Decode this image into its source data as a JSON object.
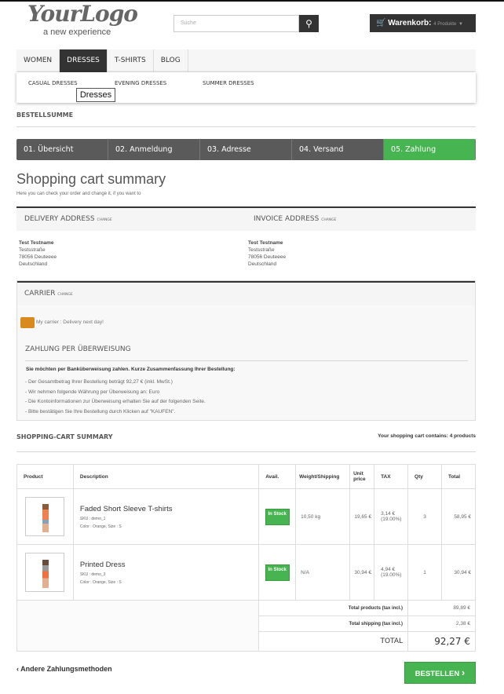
{
  "header": {
    "logo_text": "YourLogo",
    "logo_tagline": "a new experience",
    "search_placeholder": "Suche",
    "cart_label": "Warenkorb:",
    "cart_count": "4 Produkte"
  },
  "nav": {
    "items": [
      {
        "label": "WOMEN"
      },
      {
        "label": "DRESSES"
      },
      {
        "label": "T-SHIRTS"
      },
      {
        "label": "BLOG"
      }
    ],
    "submenu": [
      "CASUAL DRESSES",
      "EVENING DRESSES",
      "SUMMER DRESSES"
    ],
    "tooltip": "Dresses"
  },
  "page": {
    "section_label": "BESTELLSUMME",
    "title": "Shopping cart summary",
    "subtitle": "Here you can check your order and change it, if you want to"
  },
  "steps": [
    "01. Übersicht",
    "02. Anmeldung",
    "03. Adresse",
    "04. Versand",
    "05. Zahlung"
  ],
  "delivery": {
    "title": "DELIVERY ADDRESS",
    "change": "CHANGE",
    "lines": [
      "Test Testname",
      "Testsstraße",
      "78056 Deuteeee",
      "Deutschland"
    ]
  },
  "invoice": {
    "title": "INVOICE ADDRESS",
    "change": "CHANGE",
    "lines": [
      "Test Testname",
      "Testsstraße",
      "78056 Deuteeee",
      "Deutschland"
    ]
  },
  "carrier": {
    "title": "CARRIER",
    "change": "CHANGE",
    "text": "My carrier : Delivery next day!"
  },
  "payment": {
    "title": "ZAHLUNG PER ÜBERWEISUNG",
    "intro": "Sie möchten per Banküberweisung zahlen. Kurze Zusammenfassung Ihrer Bestellung:",
    "lines": [
      "- Der Gesamtbetrag Ihrer Bestellung beträgt 92,27 € (inkl. MwSt.)",
      "- Wir nehmen folgende Währung per Überweisung an: Euro",
      "- Die Kontoinformationen zur Überweisung erhalten Sie auf der folgenden Seite.",
      "- Bitte bestätigen Sie Ihre Bestellung durch Klicken auf \"KAUFEN\"."
    ]
  },
  "cart": {
    "title": "SHOPPING-CART SUMMARY",
    "count_text": "Your shopping cart contains: 4 products",
    "headers": [
      "Product",
      "Description",
      "Avail.",
      "Weight/Shipping",
      "Unit price",
      "TAX",
      "Qty",
      "Total"
    ],
    "rows": [
      {
        "name": "Faded Short Sleeve T-shirts",
        "sku": "SKU : demo_1",
        "attrs": "Color : Orange, Size : S",
        "avail": "In Stock",
        "weight": "10,50 kg",
        "unit": "19,65 €",
        "tax": "3,14 €",
        "tax_rate": "(19.00%)",
        "qty": "3",
        "total": "58,95 €"
      },
      {
        "name": "Printed Dress",
        "sku": "SKU : demo_3",
        "attrs": "Color : Orange, Size : S",
        "avail": "In Stock",
        "weight": "N/A",
        "unit": "30,94 €",
        "tax": "4,94 €",
        "tax_rate": "(19.00%)",
        "qty": "1",
        "total": "30,94 €"
      }
    ],
    "total_products_label": "Total products (tax incl.)",
    "total_products": "89,89 €",
    "total_shipping_label": "Total shipping (tax incl.)",
    "total_shipping": "2,38 €",
    "total_label": "TOTAL",
    "total": "92,27 €"
  },
  "footer": {
    "back_label": "Andere Zahlungsmethoden",
    "order_label": "BESTELLEN"
  },
  "colors": {
    "accent": "#46b450",
    "dark": "#333333"
  }
}
